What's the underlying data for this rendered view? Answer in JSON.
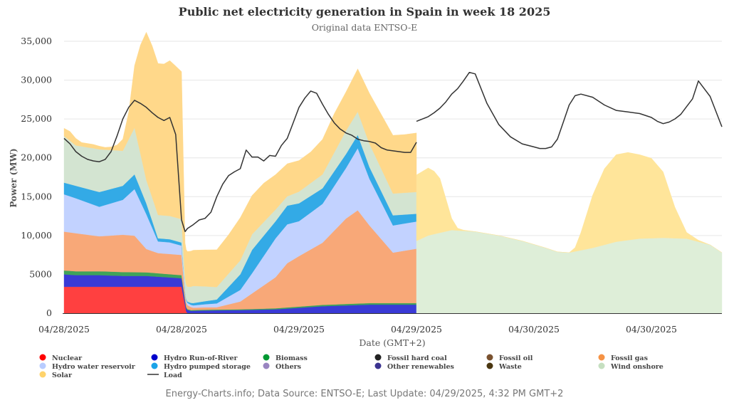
{
  "chart_data": {
    "type": "area",
    "title": "Public net electricity generation in Spain in week 18 2025",
    "subtitle": "Original data ENTSO-E",
    "xlabel": "Date (GMT+2)",
    "ylabel": "Power (MW)",
    "ylim": [
      0,
      35000
    ],
    "xlim": [
      0,
      5.6
    ],
    "x_unit": "days since 04/28/2025 00:00 (GMT+2)",
    "y_ticks": [
      "0",
      "5000",
      "10,000",
      "15,000",
      "20,000",
      "25,000",
      "30,000",
      "35,000"
    ],
    "x_ticks": [
      {
        "at": 0,
        "label": "04/28/2025"
      },
      {
        "at": 1,
        "label": "04/28/2025"
      },
      {
        "at": 2,
        "label": "04/29/2025"
      },
      {
        "at": 3,
        "label": "04/29/2025"
      },
      {
        "at": 4,
        "label": "04/30/2025"
      },
      {
        "at": 5,
        "label": "04/30/2025"
      }
    ],
    "grid": true,
    "legend_position": "bottom",
    "legend": [
      {
        "name": "Nuclear",
        "color": "#ff0000",
        "kind": "dot"
      },
      {
        "name": "Hydro Run-of-River",
        "color": "#0000cc",
        "kind": "dot"
      },
      {
        "name": "Biomass",
        "color": "#009933",
        "kind": "dot"
      },
      {
        "name": "Fossil hard coal",
        "color": "#222222",
        "kind": "dot"
      },
      {
        "name": "Fossil oil",
        "color": "#7a5230",
        "kind": "dot"
      },
      {
        "name": "Fossil gas",
        "color": "#f59245",
        "kind": "dot"
      },
      {
        "name": "Hydro water reservoir",
        "color": "#b8ccff",
        "kind": "dot"
      },
      {
        "name": "Hydro pumped storage",
        "color": "#1aa3e8",
        "kind": "dot"
      },
      {
        "name": "Others",
        "color": "#9985c0",
        "kind": "dot"
      },
      {
        "name": "Other renewables",
        "color": "#3b3390",
        "kind": "dot"
      },
      {
        "name": "Waste",
        "color": "#4a3610",
        "kind": "dot"
      },
      {
        "name": "Wind onshore",
        "color": "#c5dfc0",
        "kind": "dot"
      },
      {
        "name": "Solar",
        "color": "#ffd36b",
        "kind": "dot"
      },
      {
        "name": "Load",
        "color": "#333333",
        "kind": "line"
      }
    ],
    "stack_order": [
      "Nuclear",
      "Hydro Run-of-River",
      "Biomass",
      "Fossil gas",
      "Hydro water reservoir",
      "Hydro pumped storage",
      "Wind onshore",
      "Solar"
    ],
    "series": [
      {
        "name": "Nuclear",
        "color": "#ff4040",
        "segment": 1,
        "x": [
          0,
          1.0,
          1.04,
          1.05,
          3.0
        ],
        "y": [
          3400,
          3400,
          200,
          0,
          0
        ]
      },
      {
        "name": "Hydro Run-of-River",
        "color": "#3a3ad6",
        "segment": 1,
        "x": [
          0,
          0.1,
          0.3,
          0.5,
          0.7,
          0.9,
          1.0,
          1.03,
          1.08,
          1.2,
          1.5,
          1.8,
          2.0,
          2.2,
          2.4,
          2.6,
          2.8,
          3.0
        ],
        "y": [
          1600,
          1500,
          1500,
          1400,
          1400,
          1200,
          1100,
          500,
          300,
          350,
          400,
          500,
          700,
          900,
          1000,
          1100,
          1100,
          1100
        ]
      },
      {
        "name": "Biomass",
        "color": "#3fa35a",
        "segment": 1,
        "x": [
          0,
          0.5,
          1.0,
          1.05,
          1.5,
          2.0,
          2.5,
          3.0
        ],
        "y": [
          500,
          500,
          400,
          100,
          100,
          150,
          200,
          200
        ]
      },
      {
        "name": "Fossil gas",
        "color": "#f8a878",
        "segment": 1,
        "x": [
          0,
          0.1,
          0.3,
          0.5,
          0.6,
          0.7,
          0.8,
          0.9,
          1.0,
          1.03,
          1.1,
          1.3,
          1.5,
          1.6,
          1.8,
          1.9,
          2.0,
          2.2,
          2.4,
          2.5,
          2.6,
          2.8,
          3.0
        ],
        "y": [
          5000,
          4900,
          4500,
          4800,
          4700,
          3000,
          2600,
          2600,
          2600,
          600,
          300,
          300,
          1000,
          2000,
          4000,
          5700,
          6500,
          8000,
          11000,
          12000,
          10000,
          6500,
          7000
        ]
      },
      {
        "name": "Hydro water reservoir",
        "color": "#c2d2ff",
        "segment": 1,
        "x": [
          0,
          0.1,
          0.3,
          0.5,
          0.6,
          0.7,
          0.8,
          0.9,
          1.0,
          1.03,
          1.1,
          1.3,
          1.5,
          1.6,
          1.8,
          1.9,
          2.0,
          2.2,
          2.4,
          2.5,
          2.6,
          2.8,
          3.0
        ],
        "y": [
          4800,
          4500,
          3800,
          4500,
          6000,
          4500,
          1500,
          1500,
          1200,
          300,
          300,
          500,
          1500,
          2600,
          5000,
          5000,
          4500,
          5000,
          6500,
          8000,
          6000,
          3500,
          3500
        ]
      },
      {
        "name": "Hydro pumped storage",
        "color": "#33aae6",
        "segment": 1,
        "x": [
          0,
          0.1,
          0.3,
          0.5,
          0.6,
          0.7,
          0.8,
          0.9,
          1.0,
          1.03,
          1.1,
          1.3,
          1.5,
          1.6,
          1.8,
          1.9,
          2.0,
          2.2,
          2.4,
          2.5,
          2.6,
          2.8,
          3.0
        ],
        "y": [
          1500,
          1600,
          1900,
          1800,
          1900,
          1400,
          400,
          400,
          400,
          100,
          300,
          500,
          2000,
          3000,
          2200,
          2400,
          2300,
          2000,
          1800,
          1700,
          1500,
          1300,
          1000
        ]
      },
      {
        "name": "Wind onshore",
        "color": "#d3e4d1",
        "segment": 1,
        "x": [
          0,
          0.1,
          0.3,
          0.5,
          0.6,
          0.7,
          0.8,
          0.9,
          1.0,
          1.03,
          1.1,
          1.3,
          1.5,
          1.6,
          1.8,
          1.9,
          2.0,
          2.2,
          2.4,
          2.5,
          2.6,
          2.8,
          3.0
        ],
        "y": [
          6000,
          5200,
          5500,
          4500,
          6000,
          3000,
          3000,
          3000,
          3000,
          1800,
          2200,
          1600,
          1800,
          2000,
          1500,
          1200,
          1500,
          1800,
          3000,
          3000,
          3000,
          2800,
          2800
        ]
      },
      {
        "name": "Solar",
        "color": "#ffd88a",
        "segment": 1,
        "x": [
          0,
          0.05,
          0.1,
          0.15,
          0.2,
          0.25,
          0.3,
          0.35,
          0.4,
          0.45,
          0.5,
          0.55,
          0.6,
          0.65,
          0.7,
          0.75,
          0.8,
          0.85,
          0.9,
          0.95,
          1.0,
          1.03,
          1.1,
          1.2,
          1.3,
          1.4,
          1.5,
          1.6,
          1.7,
          1.8,
          1.9,
          2.0,
          2.1,
          2.2,
          2.3,
          2.4,
          2.5,
          2.6,
          2.7,
          2.8,
          2.9,
          3.0
        ],
        "y": [
          1000,
          1200,
          900,
          500,
          500,
          500,
          400,
          300,
          400,
          700,
          1500,
          3500,
          8000,
          14000,
          19000,
          19500,
          19500,
          19500,
          20000,
          19500,
          19000,
          4500,
          4600,
          4700,
          4800,
          5000,
          5500,
          5000,
          5000,
          4500,
          4200,
          4000,
          4000,
          4500,
          5000,
          5000,
          5500,
          6500,
          7000,
          7500,
          7500,
          7600
        ]
      },
      {
        "name": "Wind onshore",
        "color": "#deeed8",
        "segment": 2,
        "x": [
          3.0,
          3.1,
          3.3,
          3.5,
          3.7,
          3.9,
          4.1,
          4.2,
          4.3,
          4.5,
          4.7,
          4.9,
          5.1,
          5.3,
          5.5,
          5.6
        ],
        "y": [
          9300,
          10000,
          10700,
          10500,
          10000,
          9300,
          8400,
          7900,
          7800,
          8400,
          9200,
          9600,
          9700,
          9600,
          8800,
          7800
        ]
      },
      {
        "name": "Solar",
        "color": "#ffe59a",
        "segment": 2,
        "x": [
          3.0,
          3.1,
          3.15,
          3.2,
          3.3,
          3.35,
          3.4,
          3.5,
          3.7,
          3.9,
          4.1,
          4.2,
          4.3,
          4.35,
          4.4,
          4.5,
          4.6,
          4.7,
          4.8,
          4.9,
          5.0,
          5.1,
          5.2,
          5.3,
          5.4,
          5.5,
          5.6
        ],
        "y": [
          8500,
          8700,
          8100,
          7000,
          1500,
          300,
          100,
          0,
          0,
          0,
          0,
          0,
          0,
          500,
          2300,
          6800,
          9800,
          11200,
          11300,
          10800,
          10300,
          8500,
          4000,
          800,
          200,
          0,
          0
        ]
      }
    ],
    "load": {
      "name": "Load",
      "color": "#333333",
      "segments": [
        {
          "x": [
            0,
            0.05,
            0.1,
            0.15,
            0.2,
            0.25,
            0.3,
            0.35,
            0.4,
            0.45,
            0.5,
            0.55,
            0.6,
            0.65,
            0.7,
            0.75,
            0.8,
            0.85,
            0.9,
            0.95,
            1.0,
            1.03,
            1.05,
            1.1,
            1.15,
            1.2,
            1.25,
            1.3,
            1.35,
            1.4,
            1.45,
            1.5,
            1.55,
            1.6,
            1.65,
            1.7,
            1.75,
            1.8,
            1.85,
            1.9,
            1.95,
            2.0,
            2.05,
            2.1,
            2.15,
            2.2,
            2.25,
            2.3,
            2.35,
            2.4,
            2.45,
            2.5,
            2.55,
            2.6,
            2.65,
            2.7,
            2.75,
            2.8,
            2.85,
            2.9,
            2.95,
            3.0
          ],
          "y": [
            22500,
            21800,
            20800,
            20200,
            19800,
            19600,
            19500,
            19800,
            20800,
            22800,
            25000,
            26500,
            27400,
            27000,
            26500,
            25800,
            25200,
            24800,
            25200,
            23000,
            12000,
            10500,
            10900,
            11400,
            12000,
            12200,
            13000,
            15000,
            16600,
            17700,
            18200,
            18600,
            21000,
            20100,
            20100,
            19600,
            20300,
            20200,
            21600,
            22500,
            24500,
            26500,
            27700,
            28600,
            28300,
            26900,
            25600,
            24500,
            23700,
            23200,
            22900,
            22400,
            22200,
            22100,
            21900,
            21300,
            21000,
            20900,
            20800,
            20700,
            20700,
            22000
          ]
        },
        {
          "x": [
            3.0,
            3.1,
            3.15,
            3.2,
            3.25,
            3.3,
            3.35,
            3.4,
            3.45,
            3.5,
            3.6,
            3.7,
            3.8,
            3.9,
            4.0,
            4.05,
            4.1,
            4.15,
            4.2,
            4.25,
            4.3,
            4.35,
            4.4,
            4.5,
            4.6,
            4.7,
            4.8,
            4.9,
            5.0,
            5.05,
            5.1,
            5.15,
            5.2,
            5.25,
            5.3,
            5.35,
            5.4,
            5.5,
            5.6
          ],
          "y": [
            24700,
            25300,
            25800,
            26400,
            27200,
            28200,
            28900,
            29900,
            31000,
            30800,
            27000,
            24300,
            22700,
            21800,
            21400,
            21200,
            21200,
            21400,
            22400,
            24600,
            26800,
            28000,
            28200,
            27800,
            26800,
            26100,
            25900,
            25700,
            25200,
            24700,
            24400,
            24600,
            25000,
            25600,
            26600,
            27600,
            29900,
            27900,
            24000
          ]
        }
      ]
    }
  },
  "footer": "Energy-Charts.info; Data Source: ENTSO-E; Last Update: 04/29/2025, 4:32 PM GMT+2"
}
